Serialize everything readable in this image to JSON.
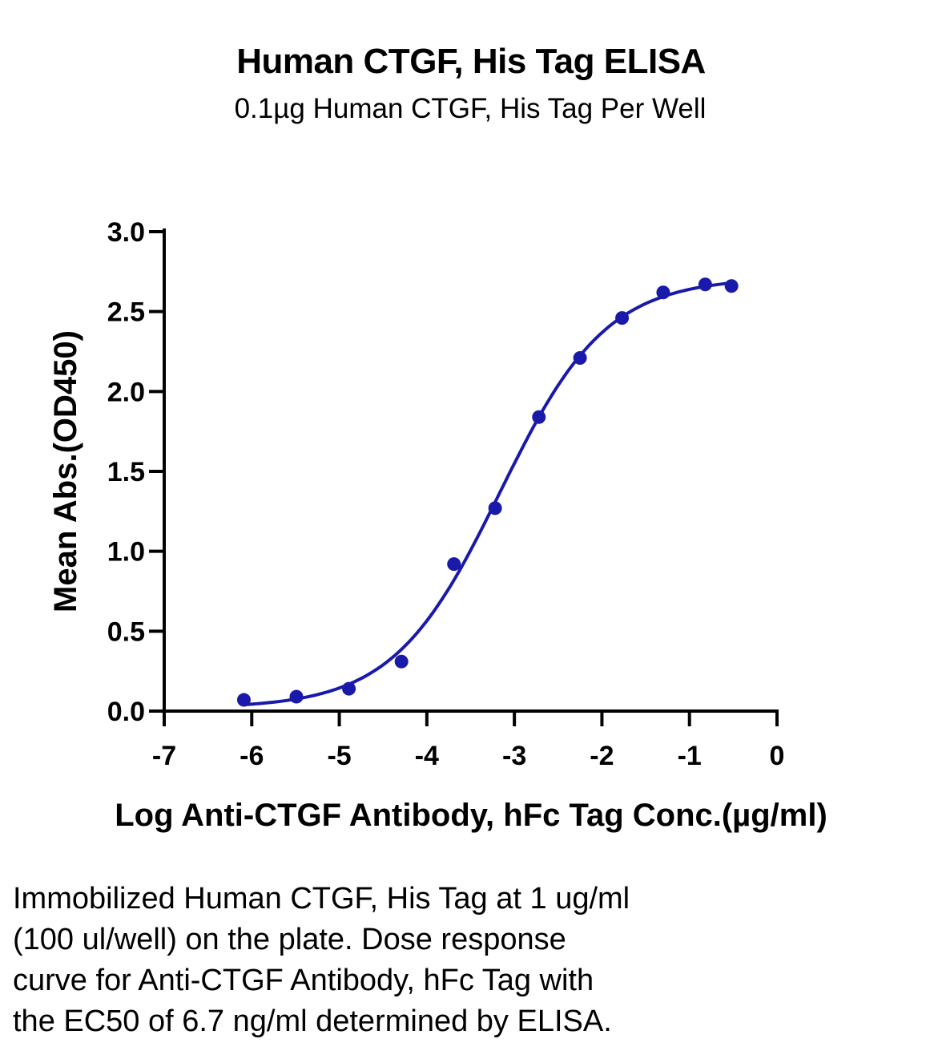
{
  "chart_data": {
    "type": "scatter",
    "title": "Human CTGF, His Tag ELISA",
    "subtitle": "0.1µg Human CTGF, His Tag Per Well",
    "xlabel": "Log Anti-CTGF Antibody, hFc Tag Conc.(µg/ml)",
    "ylabel": "Mean Abs.(OD450)",
    "xlim": [
      -7,
      0
    ],
    "ylim": [
      0,
      3.0
    ],
    "x_ticks": [
      "-7",
      "-6",
      "-5",
      "-4",
      "-3",
      "-2",
      "-1",
      "0"
    ],
    "y_ticks": [
      "0.0",
      "0.5",
      "1.0",
      "1.5",
      "2.0",
      "2.5",
      "3.0"
    ],
    "grid": false,
    "series": [
      {
        "color": "#1a1aaa",
        "points": [
          {
            "x": -6.09,
            "y": 0.07
          },
          {
            "x": -5.49,
            "y": 0.09
          },
          {
            "x": -4.89,
            "y": 0.14
          },
          {
            "x": -4.29,
            "y": 0.31
          },
          {
            "x": -3.69,
            "y": 0.92
          },
          {
            "x": -3.22,
            "y": 1.27
          },
          {
            "x": -2.72,
            "y": 1.84
          },
          {
            "x": -2.25,
            "y": 2.21
          },
          {
            "x": -1.77,
            "y": 2.46
          },
          {
            "x": -1.3,
            "y": 2.62
          },
          {
            "x": -0.82,
            "y": 2.67
          },
          {
            "x": -0.52,
            "y": 2.66
          }
        ],
        "fit": "4PL sigmoidal curve"
      }
    ]
  },
  "caption": {
    "lines": [
      "Immobilized Human CTGF, His Tag at 1 ug/ml",
      "(100 ul/well) on the plate. Dose response",
      "curve for Anti-CTGF Antibody, hFc Tag with",
      "the EC50 of 6.7 ng/ml determined by ELISA."
    ]
  }
}
